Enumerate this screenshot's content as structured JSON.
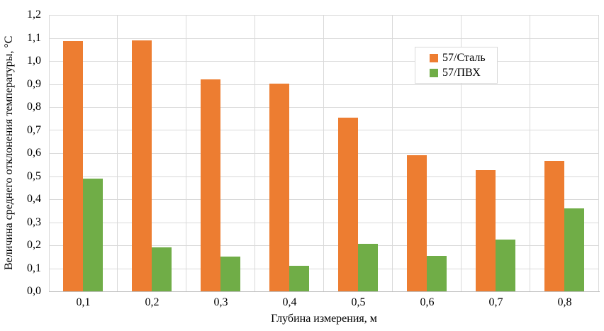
{
  "chart_data": {
    "type": "bar",
    "title": "",
    "xlabel": "Глубина измерения, м",
    "ylabel": "Величина среднего отклонения температуры, °С",
    "categories": [
      "0,1",
      "0,2",
      "0,3",
      "0,4",
      "0,5",
      "0,6",
      "0,7",
      "0,8"
    ],
    "series": [
      {
        "name": "57/Сталь",
        "color": "#ED7D31",
        "values": [
          1.085,
          1.088,
          0.92,
          0.9,
          0.755,
          0.59,
          0.525,
          0.565
        ]
      },
      {
        "name": "57/ПВХ",
        "color": "#70AD47",
        "values": [
          0.49,
          0.19,
          0.15,
          0.11,
          0.205,
          0.155,
          0.225,
          0.36
        ]
      }
    ],
    "ylim": [
      0,
      1.2
    ],
    "ytick_step": 0.1,
    "ytick_labels": [
      "0,0",
      "0,1",
      "0,2",
      "0,3",
      "0,4",
      "0,5",
      "0,6",
      "0,7",
      "0,8",
      "0,9",
      "1,0",
      "1,1",
      "1,2"
    ],
    "grid": {
      "horizontal": true,
      "vertical": true
    },
    "legend_position": "inside-top-right"
  },
  "colors": {
    "bar_orange": "#ED7D31",
    "bar_green": "#70AD47",
    "gridline": "#D9D9D9",
    "axis": "#BFBFBF",
    "text": "#000000",
    "background": "#FFFFFF"
  }
}
